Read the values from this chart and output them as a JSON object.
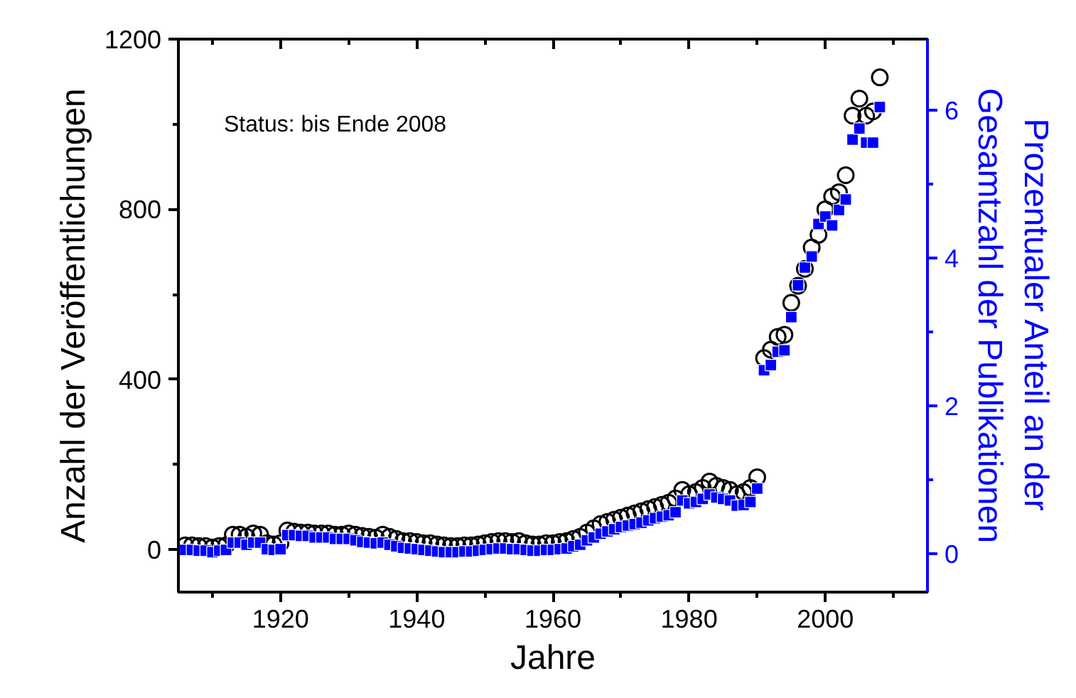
{
  "chart_data": {
    "type": "scatter",
    "xlabel": "Jahre",
    "ylabel": "Anzahl der Veröffentlichungen",
    "y2label": "Prozentualer Anteil an der Gesamtzahl der Publikationen",
    "annotations": [
      "Status: bis Ende 2008"
    ],
    "x": [
      1906,
      1907,
      1908,
      1909,
      1910,
      1911,
      1912,
      1913,
      1914,
      1915,
      1916,
      1917,
      1918,
      1919,
      1920,
      1921,
      1922,
      1923,
      1924,
      1925,
      1926,
      1927,
      1928,
      1929,
      1930,
      1931,
      1932,
      1933,
      1934,
      1935,
      1936,
      1937,
      1938,
      1939,
      1940,
      1941,
      1942,
      1943,
      1944,
      1945,
      1946,
      1947,
      1948,
      1949,
      1950,
      1951,
      1952,
      1953,
      1954,
      1955,
      1956,
      1957,
      1958,
      1959,
      1960,
      1961,
      1962,
      1963,
      1964,
      1965,
      1966,
      1967,
      1968,
      1969,
      1970,
      1971,
      1972,
      1973,
      1974,
      1975,
      1976,
      1977,
      1978,
      1979,
      1980,
      1981,
      1982,
      1983,
      1984,
      1985,
      1986,
      1987,
      1988,
      1989,
      1990,
      1991,
      1992,
      1993,
      1994,
      1995,
      1996,
      1997,
      1998,
      1999,
      2000,
      2001,
      2002,
      2003,
      2004,
      2005,
      2006,
      2007,
      2008
    ],
    "series": [
      {
        "color": "#000000",
        "marker": "circle",
        "values": [
          10,
          10,
          8,
          8,
          5,
          8,
          10,
          35,
          35,
          30,
          38,
          35,
          15,
          12,
          15,
          45,
          42,
          40,
          40,
          38,
          38,
          38,
          35,
          35,
          38,
          35,
          32,
          30,
          28,
          35,
          30,
          25,
          20,
          20,
          18,
          15,
          15,
          12,
          10,
          8,
          8,
          10,
          10,
          12,
          15,
          18,
          20,
          20,
          18,
          20,
          15,
          12,
          12,
          15,
          15,
          18,
          20,
          25,
          30,
          40,
          50,
          60,
          65,
          70,
          75,
          80,
          85,
          90,
          95,
          100,
          105,
          110,
          120,
          140,
          130,
          135,
          145,
          160,
          150,
          145,
          140,
          130,
          135,
          145,
          170,
          450,
          470,
          500,
          505,
          580,
          620,
          660,
          710,
          740,
          800,
          830,
          840,
          880,
          1020,
          1060,
          1020,
          1030,
          1110
        ]
      },
      {
        "color": "#0000ff",
        "marker": "square",
        "axis": "y2",
        "values": [
          0.05,
          0.05,
          0.04,
          0.04,
          0.02,
          0.04,
          0.05,
          0.15,
          0.15,
          0.12,
          0.15,
          0.15,
          0.06,
          0.05,
          0.06,
          0.25,
          0.25,
          0.24,
          0.24,
          0.22,
          0.22,
          0.22,
          0.2,
          0.2,
          0.2,
          0.18,
          0.16,
          0.15,
          0.14,
          0.15,
          0.12,
          0.1,
          0.08,
          0.07,
          0.06,
          0.05,
          0.04,
          0.03,
          0.02,
          0.02,
          0.02,
          0.03,
          0.03,
          0.04,
          0.05,
          0.06,
          0.07,
          0.07,
          0.06,
          0.06,
          0.05,
          0.04,
          0.04,
          0.05,
          0.05,
          0.06,
          0.07,
          0.1,
          0.12,
          0.18,
          0.22,
          0.27,
          0.3,
          0.33,
          0.36,
          0.38,
          0.4,
          0.42,
          0.45,
          0.48,
          0.5,
          0.52,
          0.56,
          0.72,
          0.68,
          0.7,
          0.74,
          0.8,
          0.76,
          0.74,
          0.72,
          0.65,
          0.66,
          0.7,
          0.88,
          2.48,
          2.55,
          2.73,
          2.75,
          3.2,
          3.63,
          3.87,
          4.02,
          4.46,
          4.56,
          4.44,
          4.65,
          4.79,
          5.6,
          5.75,
          5.56,
          5.56,
          6.04
        ]
      }
    ],
    "xlim": [
      1905,
      2015
    ],
    "xticks": [
      {
        "value": 1910,
        "label": null
      },
      1920,
      {
        "value": 1930,
        "label": null
      },
      1940,
      {
        "value": 1950,
        "label": null
      },
      1960,
      {
        "value": 1970,
        "label": null
      },
      1980,
      {
        "value": 1990,
        "label": null
      },
      2000,
      {
        "value": 2010,
        "label": null
      }
    ],
    "ylim": [
      -100,
      1200
    ],
    "yticks": [
      0,
      {
        "value": 200,
        "label": null
      },
      400,
      {
        "value": 600,
        "label": null
      },
      800,
      {
        "value": 1000,
        "label": null
      },
      1200
    ],
    "y2lim": [
      -0.52,
      6.96
    ],
    "y2ticks": [
      0,
      {
        "value": 1,
        "label": null
      },
      2,
      {
        "value": 3,
        "label": null
      },
      4,
      {
        "value": 5,
        "label": null
      },
      6
    ],
    "grid": false
  }
}
